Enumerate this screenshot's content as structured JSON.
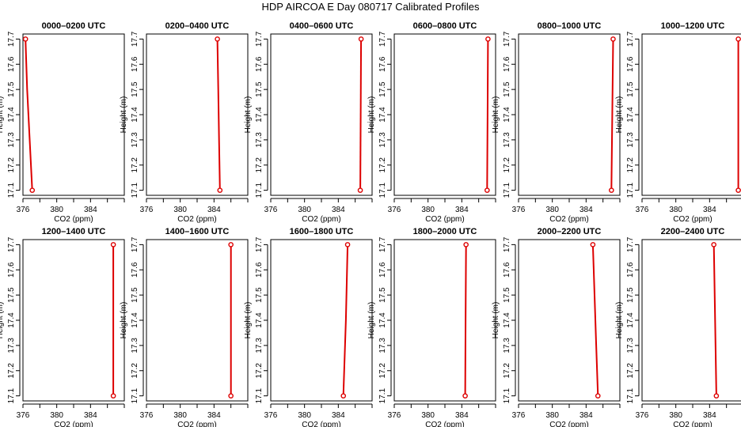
{
  "figure": {
    "title": "HDP AIRCOA E  Day 080717  Calibrated Profiles"
  },
  "colors": {
    "series": "#dd0000",
    "axis": "#000000"
  },
  "chart_data": [
    {
      "type": "line",
      "title": "0000–0200 UTC",
      "xlabel": "CO2 (ppm)",
      "ylabel": "Height (m)",
      "xlim": [
        376,
        388
      ],
      "ylim": [
        17.08,
        17.72
      ],
      "x_ticks": [
        "376",
        "380",
        "384"
      ],
      "y_ticks": [
        "17.1",
        "17.2",
        "17.3",
        "17.4",
        "17.5",
        "17.6",
        "17.7"
      ],
      "x": [
        376.3,
        376.5,
        376.8,
        377.1
      ],
      "y": [
        17.7,
        17.5,
        17.3,
        17.1
      ],
      "endpoints": [
        {
          "x": 376.3,
          "y": 17.7
        },
        {
          "x": 377.1,
          "y": 17.1
        }
      ]
    },
    {
      "type": "line",
      "title": "0200–0400 UTC",
      "xlabel": "CO2 (ppm)",
      "ylabel": "Height (m)",
      "xlim": [
        376,
        388
      ],
      "ylim": [
        17.08,
        17.72
      ],
      "x_ticks": [
        "376",
        "380",
        "384"
      ],
      "y_ticks": [
        "17.1",
        "17.2",
        "17.3",
        "17.4",
        "17.5",
        "17.6",
        "17.7"
      ],
      "x": [
        384.4,
        384.5,
        384.6,
        384.7
      ],
      "y": [
        17.7,
        17.5,
        17.3,
        17.1
      ],
      "endpoints": [
        {
          "x": 384.4,
          "y": 17.7
        },
        {
          "x": 384.7,
          "y": 17.1
        }
      ]
    },
    {
      "type": "line",
      "title": "0400–0600 UTC",
      "xlabel": "CO2 (ppm)",
      "ylabel": "Height (m)",
      "xlim": [
        376,
        388
      ],
      "ylim": [
        17.08,
        17.72
      ],
      "x_ticks": [
        "376",
        "380",
        "384"
      ],
      "y_ticks": [
        "17.1",
        "17.2",
        "17.3",
        "17.4",
        "17.5",
        "17.6",
        "17.7"
      ],
      "x": [
        386.7,
        386.65,
        386.6
      ],
      "y": [
        17.7,
        17.4,
        17.1
      ],
      "endpoints": [
        {
          "x": 386.7,
          "y": 17.7
        },
        {
          "x": 386.6,
          "y": 17.1
        }
      ]
    },
    {
      "type": "line",
      "title": "0600–0800 UTC",
      "xlabel": "CO2 (ppm)",
      "ylabel": "Height (m)",
      "xlim": [
        376,
        388
      ],
      "ylim": [
        17.08,
        17.72
      ],
      "x_ticks": [
        "376",
        "380",
        "384"
      ],
      "y_ticks": [
        "17.1",
        "17.2",
        "17.3",
        "17.4",
        "17.5",
        "17.6",
        "17.7"
      ],
      "x": [
        387.1,
        387.05,
        387.0
      ],
      "y": [
        17.7,
        17.4,
        17.1
      ],
      "endpoints": [
        {
          "x": 387.1,
          "y": 17.7
        },
        {
          "x": 387.0,
          "y": 17.1
        }
      ]
    },
    {
      "type": "line",
      "title": "0800–1000 UTC",
      "xlabel": "CO2 (ppm)",
      "ylabel": "Height (m)",
      "xlim": [
        376,
        388
      ],
      "ylim": [
        17.08,
        17.72
      ],
      "x_ticks": [
        "376",
        "380",
        "384"
      ],
      "y_ticks": [
        "17.1",
        "17.2",
        "17.3",
        "17.4",
        "17.5",
        "17.6",
        "17.7"
      ],
      "x": [
        387.2,
        387.1,
        387.0
      ],
      "y": [
        17.7,
        17.4,
        17.1
      ],
      "endpoints": [
        {
          "x": 387.2,
          "y": 17.7
        },
        {
          "x": 387.0,
          "y": 17.1
        }
      ]
    },
    {
      "type": "line",
      "title": "1000–1200 UTC",
      "xlabel": "CO2 (ppm)",
      "ylabel": "Height (m)",
      "xlim": [
        376,
        388
      ],
      "ylim": [
        17.08,
        17.72
      ],
      "x_ticks": [
        "376",
        "380",
        "384"
      ],
      "y_ticks": [
        "17.1",
        "17.2",
        "17.3",
        "17.4",
        "17.5",
        "17.6",
        "17.7"
      ],
      "x": [
        387.4,
        387.4,
        387.4
      ],
      "y": [
        17.7,
        17.4,
        17.1
      ],
      "endpoints": [
        {
          "x": 387.4,
          "y": 17.7
        },
        {
          "x": 387.4,
          "y": 17.1
        }
      ]
    },
    {
      "type": "line",
      "title": "1200–1400 UTC",
      "xlabel": "CO2 (ppm)",
      "ylabel": "Height (m)",
      "xlim": [
        376,
        388
      ],
      "ylim": [
        17.08,
        17.72
      ],
      "x_ticks": [
        "376",
        "380",
        "384"
      ],
      "y_ticks": [
        "17.1",
        "17.2",
        "17.3",
        "17.4",
        "17.5",
        "17.6",
        "17.7"
      ],
      "x": [
        386.7,
        386.7,
        386.7
      ],
      "y": [
        17.7,
        17.4,
        17.1
      ],
      "endpoints": [
        {
          "x": 386.7,
          "y": 17.7
        },
        {
          "x": 386.7,
          "y": 17.1
        }
      ]
    },
    {
      "type": "line",
      "title": "1400–1600 UTC",
      "xlabel": "CO2 (ppm)",
      "ylabel": "Height (m)",
      "xlim": [
        376,
        388
      ],
      "ylim": [
        17.08,
        17.72
      ],
      "x_ticks": [
        "376",
        "380",
        "384"
      ],
      "y_ticks": [
        "17.1",
        "17.2",
        "17.3",
        "17.4",
        "17.5",
        "17.6",
        "17.7"
      ],
      "x": [
        386.0,
        386.0,
        386.0
      ],
      "y": [
        17.7,
        17.4,
        17.1
      ],
      "endpoints": [
        {
          "x": 386.0,
          "y": 17.7
        },
        {
          "x": 386.0,
          "y": 17.1
        }
      ]
    },
    {
      "type": "line",
      "title": "1600–1800 UTC",
      "xlabel": "CO2 (ppm)",
      "ylabel": "Height (m)",
      "xlim": [
        376,
        388
      ],
      "ylim": [
        17.08,
        17.72
      ],
      "x_ticks": [
        "376",
        "380",
        "384"
      ],
      "y_ticks": [
        "17.1",
        "17.2",
        "17.3",
        "17.4",
        "17.5",
        "17.6",
        "17.7"
      ],
      "x": [
        385.1,
        384.9,
        384.6
      ],
      "y": [
        17.7,
        17.4,
        17.1
      ],
      "endpoints": [
        {
          "x": 385.1,
          "y": 17.7
        },
        {
          "x": 384.6,
          "y": 17.1
        }
      ]
    },
    {
      "type": "line",
      "title": "1800–2000 UTC",
      "xlabel": "CO2 (ppm)",
      "ylabel": "Height (m)",
      "xlim": [
        376,
        388
      ],
      "ylim": [
        17.08,
        17.72
      ],
      "x_ticks": [
        "376",
        "380",
        "384"
      ],
      "y_ticks": [
        "17.1",
        "17.2",
        "17.3",
        "17.4",
        "17.5",
        "17.6",
        "17.7"
      ],
      "x": [
        384.5,
        384.45,
        384.4
      ],
      "y": [
        17.7,
        17.4,
        17.1
      ],
      "endpoints": [
        {
          "x": 384.5,
          "y": 17.7
        },
        {
          "x": 384.4,
          "y": 17.1
        }
      ]
    },
    {
      "type": "line",
      "title": "2000–2200 UTC",
      "xlabel": "CO2 (ppm)",
      "ylabel": "Height (m)",
      "xlim": [
        376,
        388
      ],
      "ylim": [
        17.08,
        17.72
      ],
      "x_ticks": [
        "376",
        "380",
        "384"
      ],
      "y_ticks": [
        "17.1",
        "17.2",
        "17.3",
        "17.4",
        "17.5",
        "17.6",
        "17.7"
      ],
      "x": [
        384.8,
        385.0,
        385.2,
        385.4
      ],
      "y": [
        17.7,
        17.5,
        17.3,
        17.1
      ],
      "endpoints": [
        {
          "x": 384.8,
          "y": 17.7
        },
        {
          "x": 385.4,
          "y": 17.1
        }
      ]
    },
    {
      "type": "line",
      "title": "2200–2400 UTC",
      "xlabel": "CO2 (ppm)",
      "ylabel": "Height (m)",
      "xlim": [
        376,
        388
      ],
      "ylim": [
        17.08,
        17.72
      ],
      "x_ticks": [
        "376",
        "380",
        "384"
      ],
      "y_ticks": [
        "17.1",
        "17.2",
        "17.3",
        "17.4",
        "17.5",
        "17.6",
        "17.7"
      ],
      "x": [
        384.5,
        384.65,
        384.8
      ],
      "y": [
        17.7,
        17.4,
        17.1
      ],
      "endpoints": [
        {
          "x": 384.5,
          "y": 17.7
        },
        {
          "x": 384.8,
          "y": 17.1
        }
      ]
    }
  ]
}
